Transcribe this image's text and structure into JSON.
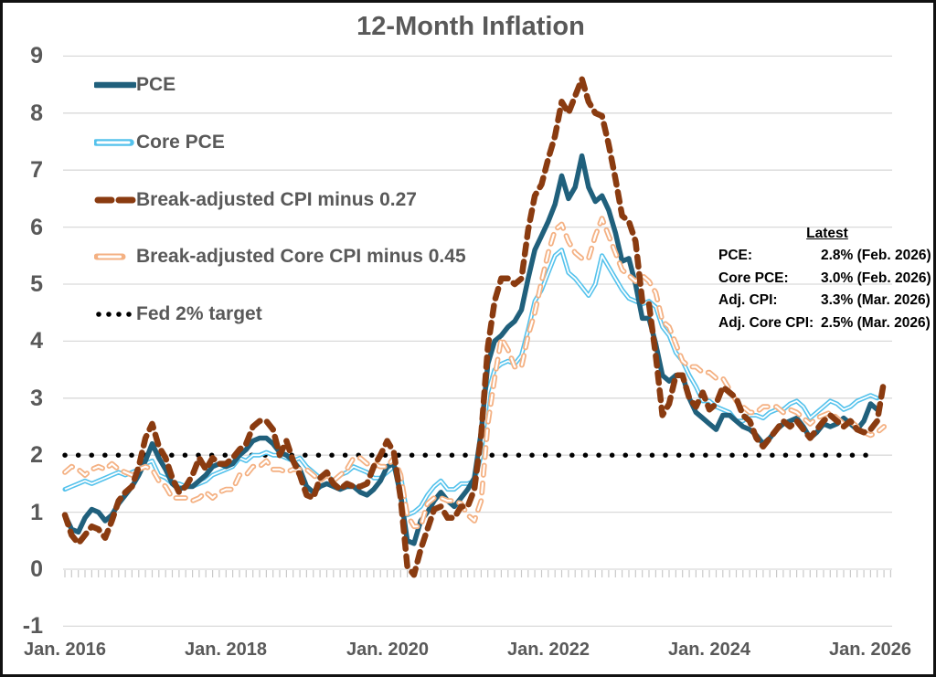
{
  "title": "12-Month Inflation",
  "colors": {
    "pce": "#20607c",
    "core_pce": "#54c2ec",
    "adj_cpi": "#8a3b10",
    "adj_core_cpi": "#f4b183",
    "fed_target": "#000000",
    "grid": "#d9d9d9",
    "axis_tick": "#c9c9c9",
    "chart_text": "#595959",
    "annotation_text": "#000000"
  },
  "legend": [
    {
      "key": "pce",
      "label": "PCE"
    },
    {
      "key": "core_pce",
      "label": "Core PCE"
    },
    {
      "key": "adj_cpi",
      "label": "Break-adjusted CPI minus 0.27"
    },
    {
      "key": "adj_core_cpi",
      "label": "Break-adjusted Core CPI minus 0.45"
    },
    {
      "key": "fed_target",
      "label": "Fed 2% target"
    }
  ],
  "latest": {
    "title": "Latest",
    "rows": [
      {
        "key": "pce",
        "label": "PCE:",
        "value": "2.8% (Feb. 2026)"
      },
      {
        "key": "core_pce",
        "label": "Core PCE:",
        "value": "3.0% (Feb. 2026)"
      },
      {
        "key": "adj_cpi",
        "label": "Adj. CPI:",
        "value": "3.3% (Mar. 2026)"
      },
      {
        "key": "adj_core_cpi",
        "label": "Adj. Core CPI:",
        "value": "2.5% (Mar. 2026)"
      }
    ]
  },
  "chart_data": {
    "type": "line",
    "title": "12-Month Inflation",
    "x_start": "2016-01",
    "x_frequency": "monthly",
    "x_tick_labels": [
      "Jan. 2016",
      "Jan. 2018",
      "Jan. 2020",
      "Jan. 2022",
      "Jan. 2024",
      "Jan. 2026"
    ],
    "x_tick_months": [
      0,
      24,
      48,
      72,
      96,
      120
    ],
    "y_ticks": [
      9,
      8,
      7,
      6,
      5,
      4,
      3,
      2,
      1,
      0,
      -1
    ],
    "ylim": [
      -1,
      9
    ],
    "grid": true,
    "legend_position": "upper-left-inside",
    "series": [
      {
        "key": "pce",
        "name": "PCE",
        "style": "solid",
        "color": "#20607c",
        "values": [
          0.95,
          0.7,
          0.65,
          0.9,
          1.05,
          1.0,
          0.85,
          0.95,
          1.15,
          1.3,
          1.45,
          1.65,
          1.9,
          2.2,
          1.95,
          1.75,
          1.5,
          1.4,
          1.45,
          1.45,
          1.55,
          1.65,
          1.8,
          1.85,
          1.8,
          1.85,
          2.0,
          2.1,
          2.25,
          2.3,
          2.3,
          2.2,
          2.05,
          2.0,
          1.9,
          1.75,
          1.45,
          1.35,
          1.45,
          1.5,
          1.45,
          1.4,
          1.45,
          1.45,
          1.35,
          1.3,
          1.4,
          1.55,
          1.8,
          1.85,
          1.3,
          0.5,
          0.45,
          0.85,
          1.0,
          1.2,
          1.35,
          1.2,
          1.1,
          1.25,
          1.4,
          1.6,
          2.4,
          3.6,
          4.0,
          4.1,
          4.25,
          4.35,
          4.55,
          5.1,
          5.6,
          5.85,
          6.1,
          6.4,
          6.9,
          6.5,
          6.7,
          7.25,
          6.7,
          6.45,
          6.55,
          6.3,
          5.9,
          5.4,
          5.45,
          5.0,
          4.4,
          4.4,
          3.95,
          3.4,
          3.3,
          3.4,
          3.4,
          3.0,
          2.75,
          2.65,
          2.55,
          2.45,
          2.7,
          2.7,
          2.6,
          2.5,
          2.45,
          2.35,
          2.2,
          2.3,
          2.45,
          2.55,
          2.6,
          2.65,
          2.5,
          2.3,
          2.4,
          2.55,
          2.5,
          2.55,
          2.65,
          2.55,
          2.45,
          2.6,
          2.9,
          2.8
        ]
      },
      {
        "key": "core_pce",
        "name": "Core PCE",
        "style": "outline",
        "color": "#54c2ec",
        "values": [
          1.4,
          1.45,
          1.5,
          1.55,
          1.5,
          1.55,
          1.6,
          1.65,
          1.7,
          1.65,
          1.7,
          1.75,
          1.85,
          1.9,
          1.65,
          1.6,
          1.5,
          1.5,
          1.45,
          1.45,
          1.5,
          1.55,
          1.65,
          1.7,
          1.75,
          1.8,
          1.95,
          1.9,
          2.0,
          2.0,
          2.05,
          2.0,
          2.0,
          1.95,
          1.9,
          1.95,
          1.8,
          1.7,
          1.6,
          1.65,
          1.55,
          1.65,
          1.7,
          1.8,
          1.75,
          1.7,
          1.6,
          1.6,
          1.7,
          1.8,
          1.65,
          0.95,
          1.0,
          1.1,
          1.3,
          1.45,
          1.55,
          1.4,
          1.4,
          1.5,
          1.5,
          1.55,
          2.0,
          3.1,
          3.5,
          3.6,
          3.65,
          3.6,
          3.75,
          4.2,
          4.7,
          4.9,
          5.2,
          5.5,
          5.6,
          5.2,
          5.1,
          4.95,
          4.8,
          5.0,
          5.5,
          5.3,
          5.1,
          4.9,
          4.75,
          4.7,
          4.65,
          4.7,
          4.6,
          4.25,
          4.1,
          3.8,
          3.65,
          3.4,
          3.2,
          2.95,
          2.95,
          2.85,
          2.8,
          2.75,
          2.6,
          2.6,
          2.7,
          2.7,
          2.65,
          2.75,
          2.8,
          2.8,
          2.9,
          2.95,
          2.85,
          2.65,
          2.75,
          2.85,
          2.95,
          2.9,
          2.8,
          2.85,
          2.95,
          3.0,
          3.05,
          3.0
        ]
      },
      {
        "key": "adj_cpi",
        "name": "Break-adjusted CPI minus 0.27",
        "style": "dashed",
        "color": "#8a3b10",
        "values": [
          0.95,
          0.6,
          0.45,
          0.6,
          0.75,
          0.7,
          0.55,
          0.85,
          1.2,
          1.35,
          1.45,
          1.8,
          2.3,
          2.55,
          2.15,
          1.95,
          1.6,
          1.35,
          1.45,
          1.65,
          1.95,
          1.75,
          1.95,
          1.85,
          1.85,
          1.95,
          2.1,
          2.2,
          2.5,
          2.6,
          2.6,
          2.45,
          2.0,
          2.25,
          1.9,
          1.65,
          1.3,
          1.25,
          1.6,
          1.7,
          1.5,
          1.4,
          1.5,
          1.45,
          1.45,
          1.5,
          1.8,
          2.0,
          2.25,
          2.05,
          1.25,
          0.05,
          -0.1,
          0.35,
          0.7,
          1.05,
          1.1,
          0.9,
          0.9,
          1.1,
          1.1,
          1.4,
          2.35,
          3.9,
          4.7,
          5.1,
          5.1,
          5.0,
          5.1,
          5.95,
          6.55,
          6.75,
          7.2,
          7.6,
          8.2,
          8.0,
          8.3,
          8.6,
          8.2,
          8.0,
          7.95,
          7.45,
          6.85,
          6.2,
          6.1,
          5.75,
          4.7,
          4.65,
          3.75,
          2.7,
          2.9,
          3.4,
          3.4,
          3.0,
          2.85,
          3.1,
          2.8,
          2.9,
          3.2,
          3.1,
          3.0,
          2.7,
          2.6,
          2.3,
          2.15,
          2.3,
          2.45,
          2.6,
          2.5,
          2.6,
          2.45,
          2.3,
          2.45,
          2.6,
          2.7,
          2.6,
          2.5,
          2.6,
          2.45,
          2.4,
          2.45,
          2.6,
          3.3
        ]
      },
      {
        "key": "adj_core_cpi",
        "name": "Break-adjusted Core CPI minus 0.45",
        "style": "outline-dashed",
        "color": "#f4b183",
        "values": [
          1.7,
          1.8,
          1.75,
          1.65,
          1.75,
          1.8,
          1.75,
          1.85,
          1.75,
          1.7,
          1.65,
          1.75,
          1.8,
          1.75,
          1.55,
          1.45,
          1.25,
          1.25,
          1.25,
          1.2,
          1.25,
          1.35,
          1.25,
          1.35,
          1.4,
          1.4,
          1.65,
          1.65,
          1.8,
          1.8,
          1.9,
          1.75,
          1.75,
          1.7,
          1.75,
          1.75,
          1.75,
          1.65,
          1.55,
          1.65,
          1.55,
          1.65,
          1.75,
          1.95,
          1.95,
          1.85,
          1.85,
          1.8,
          1.8,
          1.95,
          1.65,
          0.95,
          0.75,
          0.75,
          1.15,
          1.25,
          1.25,
          1.2,
          1.2,
          1.15,
          0.95,
          0.85,
          1.2,
          2.55,
          3.35,
          4.05,
          3.85,
          3.55,
          3.55,
          4.1,
          4.5,
          5.05,
          5.55,
          5.95,
          6.05,
          5.75,
          5.55,
          5.45,
          5.45,
          5.85,
          6.15,
          5.85,
          5.55,
          5.25,
          5.15,
          5.05,
          5.15,
          5.05,
          4.85,
          4.35,
          4.25,
          3.95,
          3.65,
          3.55,
          3.55,
          3.45,
          3.45,
          3.35,
          3.35,
          3.15,
          2.95,
          2.85,
          2.75,
          2.75,
          2.85,
          2.85,
          2.85,
          2.75,
          2.8,
          2.75,
          2.65,
          2.55,
          2.65,
          2.7,
          2.75,
          2.65,
          2.55,
          2.6,
          2.5,
          2.4,
          2.35,
          2.4,
          2.5
        ]
      },
      {
        "key": "fed_target",
        "name": "Fed 2% target",
        "style": "dotted",
        "color": "#000000",
        "target_value": 2
      }
    ]
  }
}
